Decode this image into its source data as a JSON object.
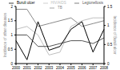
{
  "chart_data": {
    "type": "line",
    "categories": [
      "2000",
      "2001",
      "2002",
      "2003",
      "2004",
      "2005",
      "2006",
      "2007",
      "2008"
    ],
    "y_label": "Incidence of other diseases",
    "y2_label": "Incidence of Buruli ulcer",
    "ylim": [
      0,
      2
    ],
    "yticks": [
      0,
      0.5,
      1,
      1.5,
      2
    ],
    "y2lim": [
      0,
      1.5
    ],
    "y2ticks": [
      0,
      0.5,
      1,
      1.5
    ],
    "legend": "top",
    "series": [
      {
        "name": "TB",
        "color": "#8a8a8a",
        "values": [
          1.9,
          1.9,
          1.3,
          1.4,
          1.5,
          1.6,
          1.3,
          1.4,
          1.5
        ]
      },
      {
        "name": "HIV/AIDS",
        "color": "#c0c0c0",
        "values": [
          1.2,
          1.3,
          1.0,
          0.3,
          0.4,
          1.3,
          1.5,
          1.6,
          1.6
        ]
      },
      {
        "name": "Legionellosis",
        "color": "#555555",
        "values": [
          1.0,
          1.0,
          0.6,
          0.6,
          0.7,
          0.8,
          0.8,
          0.7,
          0.9
        ]
      },
      {
        "name": "Buruli ulcer",
        "color": "#000000",
        "axis": "y2",
        "values": [
          0.6,
          0.1,
          1.1,
          0.35,
          0.45,
          0.9,
          1.1,
          0.3,
          0.9
        ]
      }
    ]
  }
}
